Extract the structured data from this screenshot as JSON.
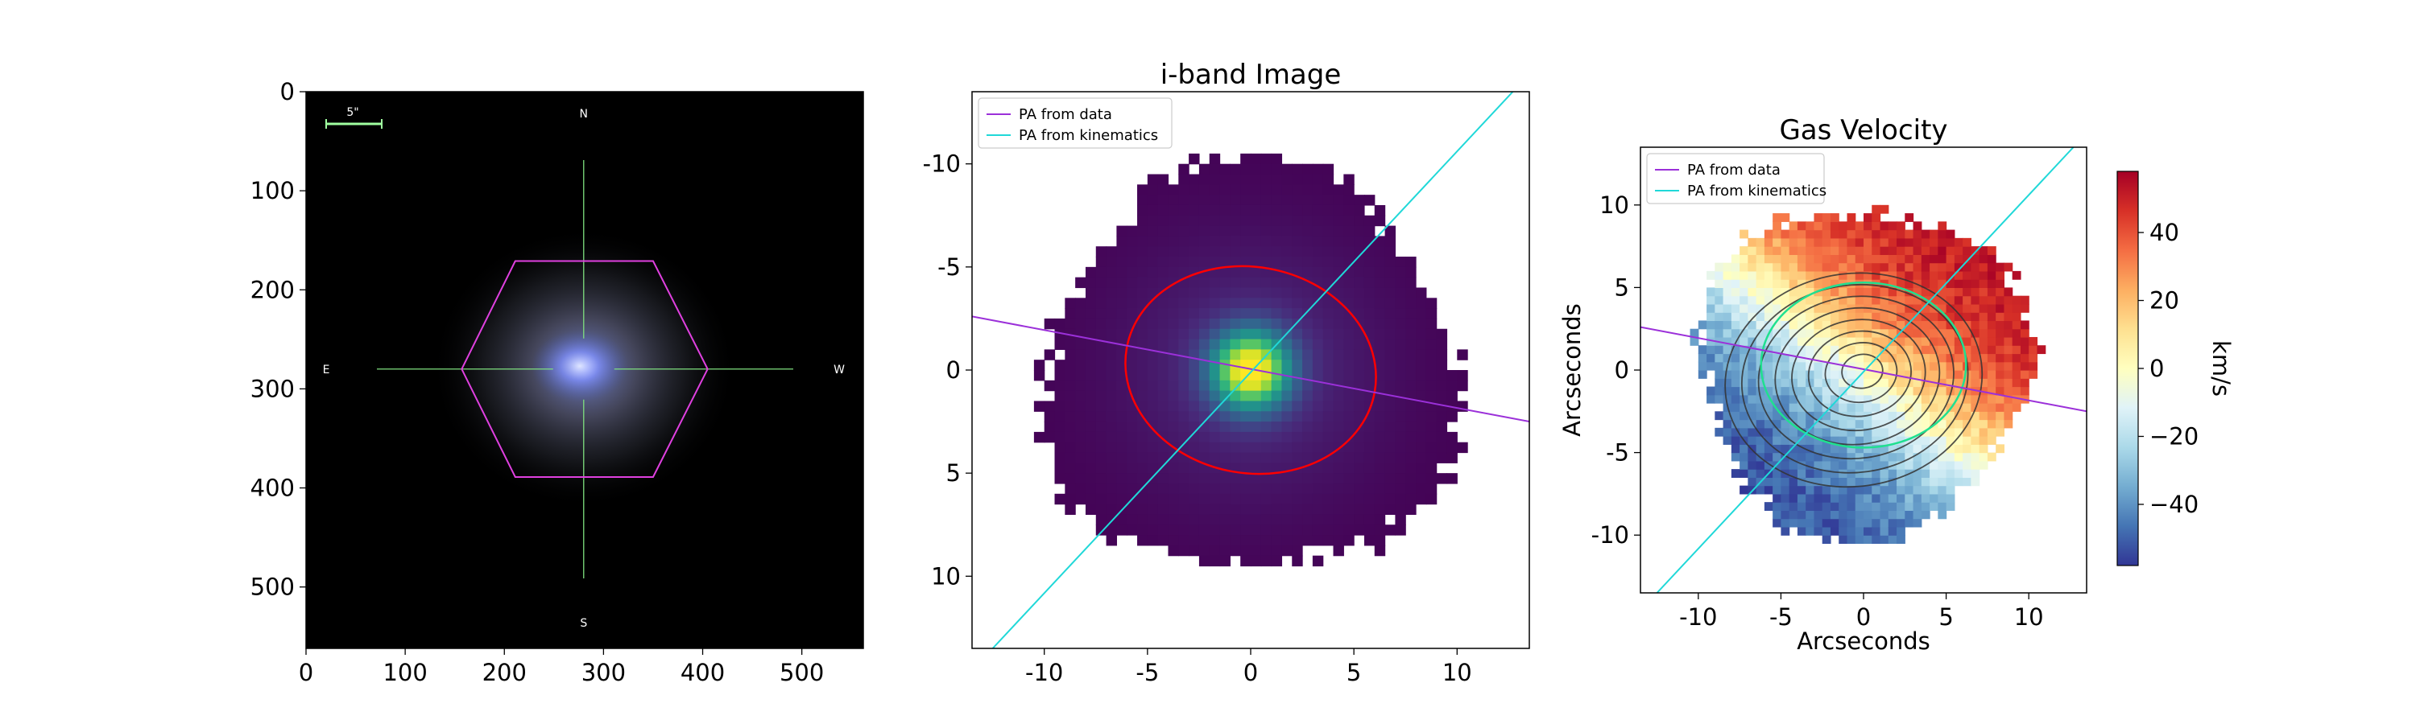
{
  "chart_data": [
    {
      "type": "image",
      "panel": "sdss-image",
      "x_ticks": [
        0,
        100,
        200,
        300,
        400,
        500
      ],
      "y_ticks": [
        0,
        100,
        200,
        300,
        400,
        500
      ],
      "xlim": [
        0,
        562
      ],
      "ylim": [
        562,
        0
      ],
      "compass": {
        "north": "N",
        "south": "S",
        "east": "E",
        "west": "W"
      },
      "scalebar_label": "5\"",
      "hexagon_vertices": [
        [
          157,
          280
        ],
        [
          211,
          171
        ],
        [
          350,
          171
        ],
        [
          405,
          280
        ],
        [
          350,
          389
        ],
        [
          211,
          389
        ]
      ],
      "crosshair_center": [
        280,
        280
      ],
      "colors": {
        "hexagon": "#e040e0",
        "crosshair": "#7fe07f",
        "scalebar": "#a0ffa0"
      }
    },
    {
      "type": "heatmap",
      "panel": "i-band",
      "title": "i-band Image",
      "xlabel": "",
      "ylabel": "",
      "x_ticks": [
        -10,
        -5,
        0,
        5,
        10
      ],
      "y_ticks": [
        -10,
        -5,
        0,
        5,
        10
      ],
      "xlim": [
        -13.5,
        13.5
      ],
      "ylim": [
        13.5,
        -13.5
      ],
      "colormap": "viridis",
      "lines": [
        {
          "name": "PA from data",
          "color": "#9b30d9",
          "x": [
            -13.5,
            13.5
          ],
          "y": [
            -2.6,
            2.5
          ]
        },
        {
          "name": "PA from kinematics",
          "color": "#20d8d8",
          "x": [
            -12.5,
            12.7
          ],
          "y": [
            13.5,
            -13.5
          ]
        }
      ],
      "ellipse": {
        "center": [
          0,
          0
        ],
        "a": 6.1,
        "b": 5.0,
        "angle_deg": 10,
        "color": "#ff0000"
      },
      "legend": {
        "loc": "upper-left",
        "entries": [
          "PA from data",
          "PA from kinematics"
        ]
      }
    },
    {
      "type": "heatmap",
      "panel": "gas-velocity",
      "title": "Gas Velocity",
      "xlabel": "Arcseconds",
      "ylabel": "Arcseconds",
      "x_ticks": [
        -10,
        -5,
        0,
        5,
        10
      ],
      "y_ticks": [
        10,
        5,
        0,
        -5,
        -10
      ],
      "xlim": [
        -13.5,
        13.5
      ],
      "ylim": [
        -13.5,
        13.5
      ],
      "colormap": "RdYlBu_r",
      "colorbar": {
        "label": "km/s",
        "ticks": [
          40,
          20,
          0,
          -20,
          -40
        ],
        "vmin": -58,
        "vmax": 58
      },
      "lines": [
        {
          "name": "PA from data",
          "color": "#9b30d9",
          "x": [
            -13.5,
            13.5
          ],
          "y": [
            2.6,
            -2.5
          ]
        },
        {
          "name": "PA from kinematics",
          "color": "#20d8d8",
          "x": [
            -12.5,
            12.7
          ],
          "y": [
            -13.5,
            13.5
          ]
        }
      ],
      "ellipse": {
        "center": [
          0,
          0.3
        ],
        "a": 6.2,
        "b": 5.0,
        "angle_deg": 0,
        "color": "#20e090"
      },
      "contour_levels": 8,
      "legend": {
        "loc": "upper-left",
        "entries": [
          "PA from data",
          "PA from kinematics"
        ]
      }
    }
  ]
}
